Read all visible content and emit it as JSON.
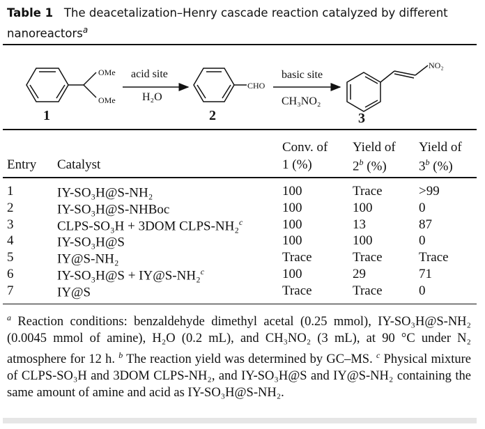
{
  "title": {
    "label": "Table 1",
    "text": "The deacetalization–Henry cascade reaction catalyzed by different nanoreactors",
    "footnote_mark": "a"
  },
  "scheme": {
    "compound1": {
      "number": "1",
      "sub1": "OMe",
      "sub2": "OMe"
    },
    "arrow1": {
      "above": "acid site",
      "below": "H₂O"
    },
    "compound2": {
      "number": "2",
      "sub": "CHO"
    },
    "arrow2": {
      "above": "basic site",
      "below": "CH₃NO₂"
    },
    "compound3": {
      "number": "3",
      "sub": "NO₂"
    }
  },
  "table": {
    "headers": {
      "entry": "Entry",
      "catalyst": "Catalyst",
      "conv_line1": "Conv. of",
      "conv_line2": "1 (%)",
      "yield2_line1": "Yield of",
      "yield2_num": "2",
      "yield2_mark": "b",
      "yield2_unit": " (%)",
      "yield3_line1": "Yield of",
      "yield3_num": "3",
      "yield3_mark": "b",
      "yield3_unit": " (%)"
    },
    "rows": [
      {
        "entry": "1",
        "catalyst": "IY-SO₃H@S-NH₂",
        "mark": "",
        "conv": "100",
        "yield2": "Trace",
        "yield3": ">99"
      },
      {
        "entry": "2",
        "catalyst": "IY-SO₃H@S-NHBoc",
        "mark": "",
        "conv": "100",
        "yield2": "100",
        "yield3": "0"
      },
      {
        "entry": "3",
        "catalyst": "CLPS-SO₃H + 3DOM CLPS-NH₂",
        "mark": "c",
        "conv": "100",
        "yield2": "13",
        "yield3": "87"
      },
      {
        "entry": "4",
        "catalyst": "IY-SO₃H@S",
        "mark": "",
        "conv": "100",
        "yield2": "100",
        "yield3": "0"
      },
      {
        "entry": "5",
        "catalyst": "IY@S-NH₂",
        "mark": "",
        "conv": "Trace",
        "yield2": "Trace",
        "yield3": "Trace"
      },
      {
        "entry": "6",
        "catalyst": "IY-SO₃H@S + IY@S-NH₂",
        "mark": "c",
        "conv": "100",
        "yield2": "29",
        "yield3": "71"
      },
      {
        "entry": "7",
        "catalyst": "IY@S",
        "mark": "",
        "conv": "Trace",
        "yield2": "Trace",
        "yield3": "0"
      }
    ]
  },
  "footnotes": {
    "a_mark": "a",
    "a_text": " Reaction conditions: benzaldehyde dimethyl acetal (0.25 mmol), IY-SO₃H@S-NH₂ (0.0045 mmol of amine), H₂O (0.2 mL), and CH₃NO₂ (3 mL), at 90 °C under N₂ atmosphere for 12 h. ",
    "b_mark": "b",
    "b_text": " The reaction yield was determined by GC–MS. ",
    "c_mark": "c",
    "c_text": " Physical mixture of CLPS-SO₃H and 3DOM CLPS-NH₂, and IY-SO₃H@S and IY@S-NH₂ containing the same amount of amine and acid as IY-SO₃H@S-NH₂."
  }
}
